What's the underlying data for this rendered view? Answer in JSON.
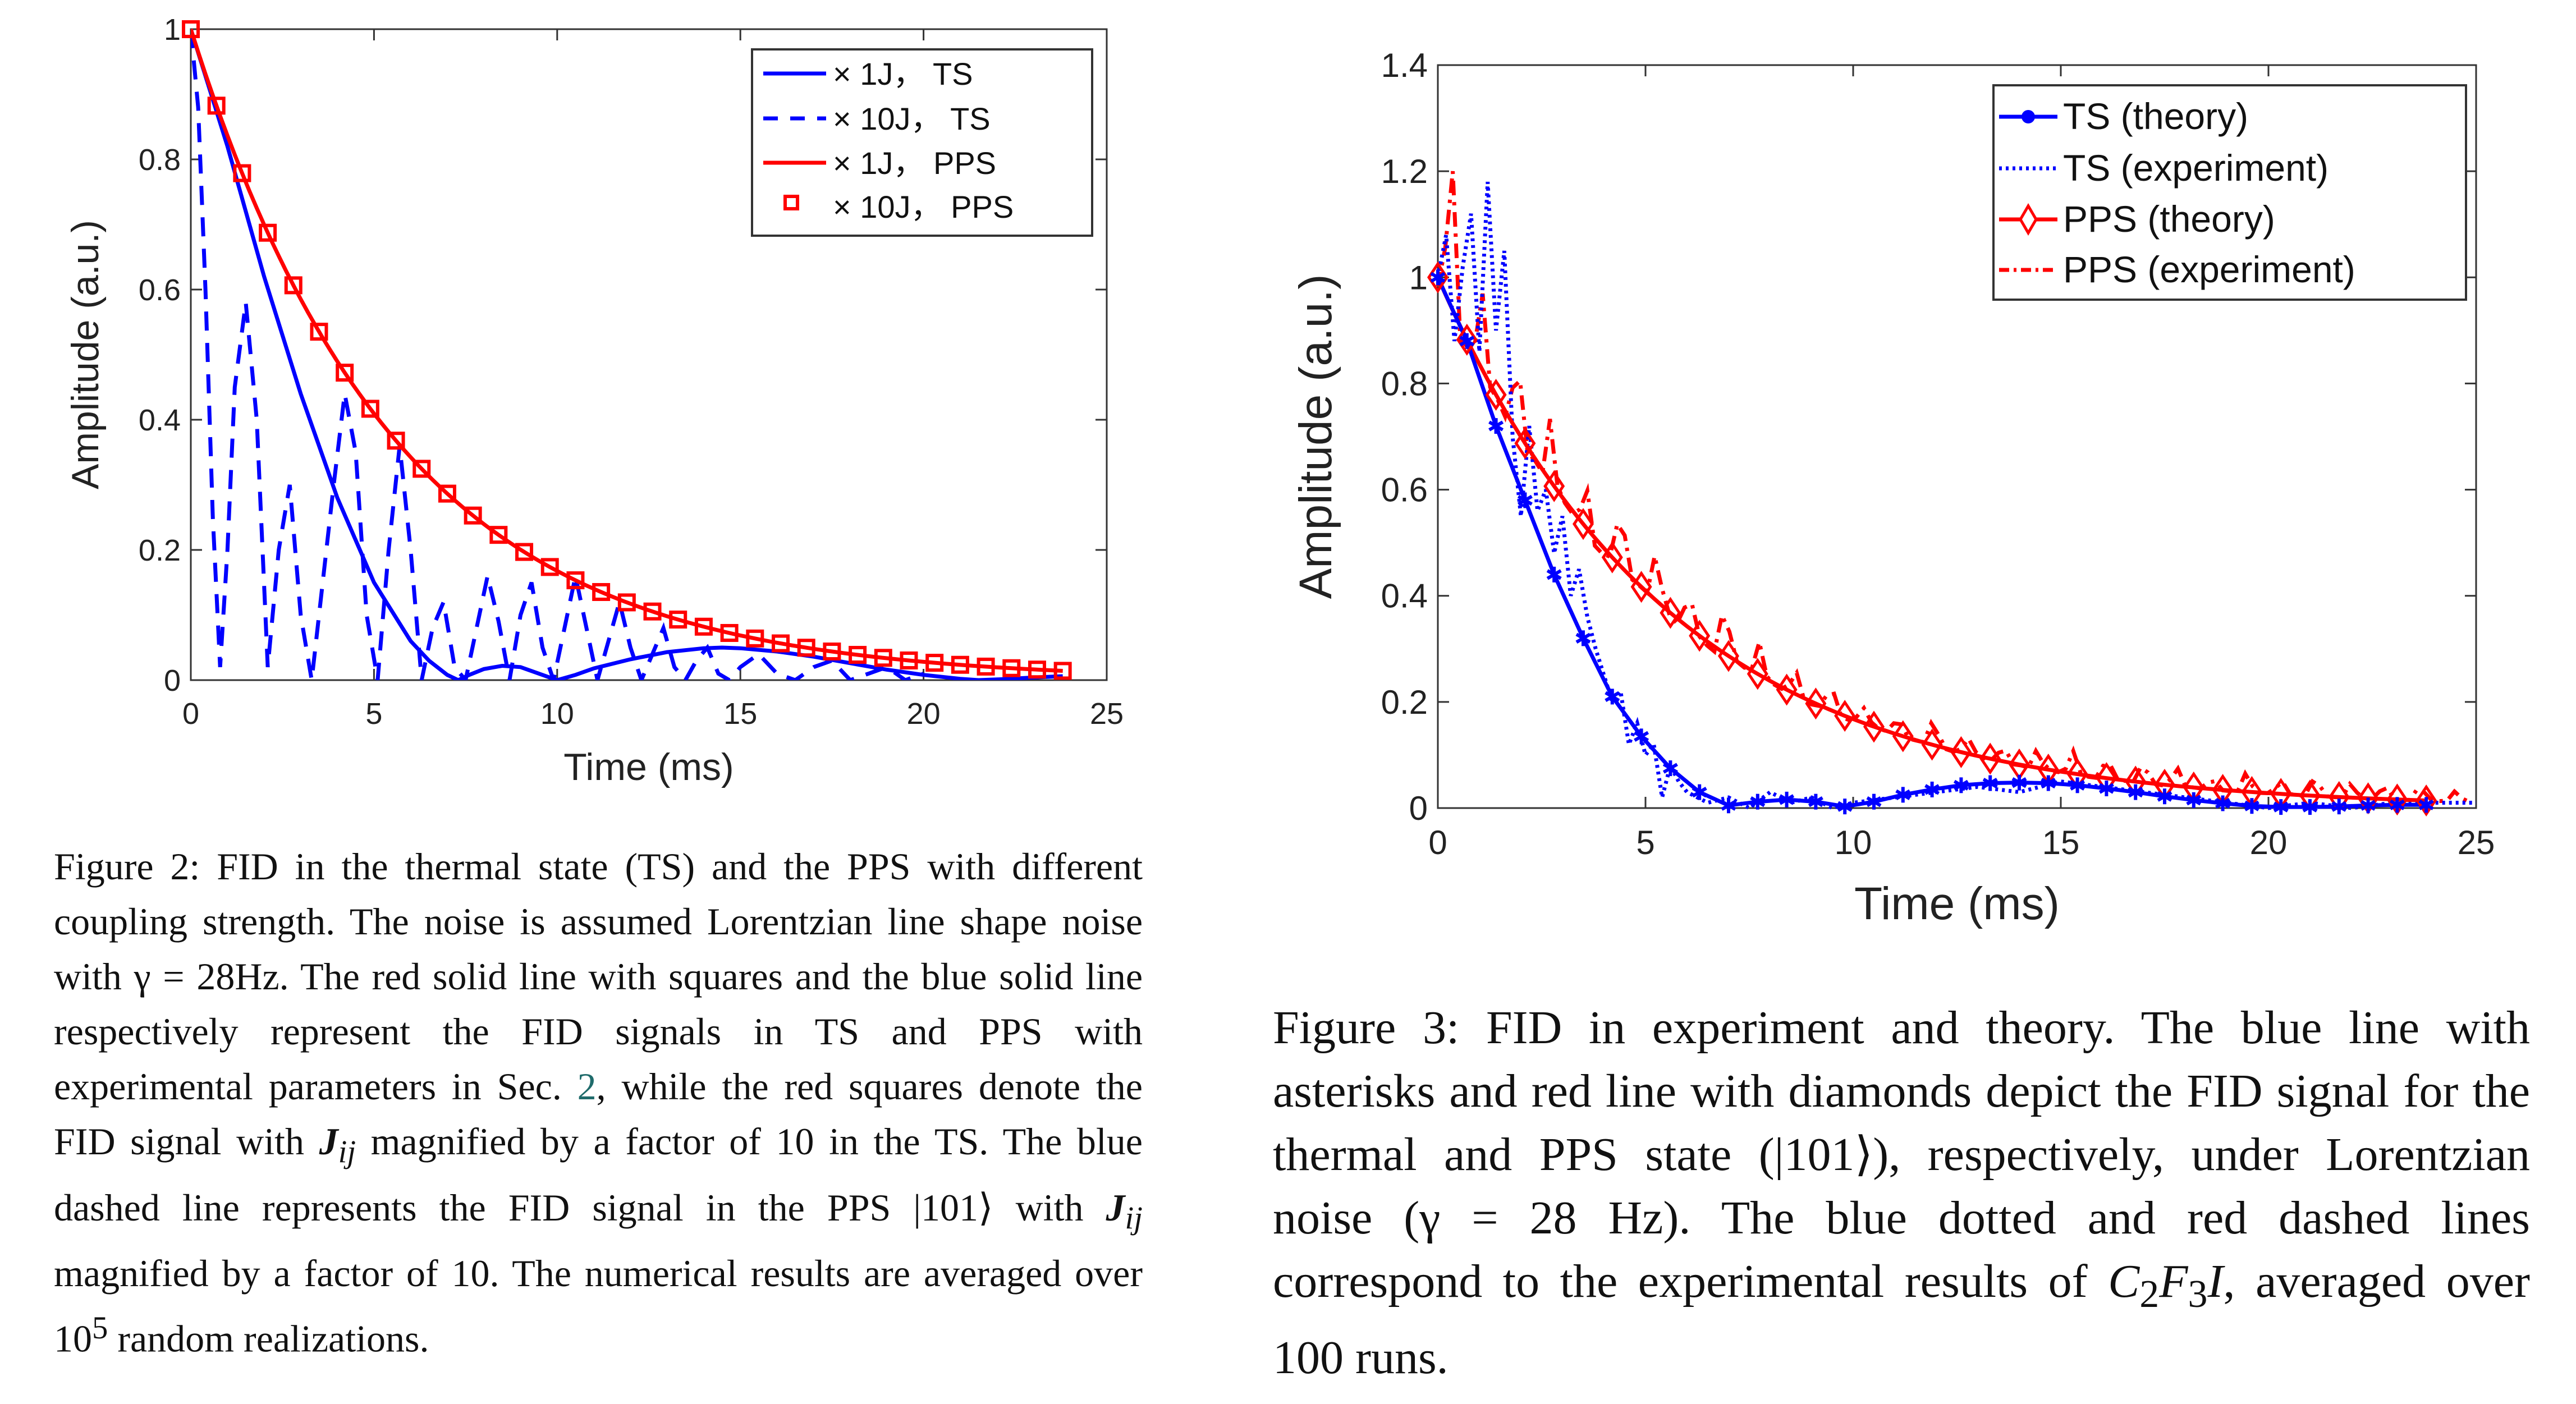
{
  "figure2": {
    "caption": {
      "label": "Figure 2:",
      "parts": [
        "FID in the thermal state (TS) and the PPS with different coupling strength. The noise is assumed Lorentzian line shape noise with γ = 28Hz. The red solid line with squares and the blue solid line respectively represent the FID signals in TS and PPS with experimental parameters in Sec. ",
        "2",
        ", while the red squares denote the FID signal with ",
        "J",
        "ij",
        " magnified by a factor of 10 in the TS. The blue dashed line represents the FID signal in the PPS |101⟩ with ",
        "J",
        "ij",
        " magnified by a factor of 10. The numerical results are averaged over 10",
        "5",
        " random realizations."
      ]
    }
  },
  "figure3": {
    "caption": {
      "label": "Figure 3:",
      "parts": [
        "FID in experiment and theory. The blue line with asterisks and red line with diamonds depict the FID signal for the thermal and PPS state (|101⟩), respectively, under Lorentzian noise (γ = 28 Hz). The blue dotted and red dashed lines correspond to the experimental results of ",
        "C",
        "2",
        "F",
        "3",
        "I",
        ", averaged over 100 runs."
      ]
    }
  },
  "chart_data": [
    {
      "id": "fig2-plot",
      "type": "line",
      "title": "",
      "xlabel": "Time (ms)",
      "ylabel": "Amplitude (a.u.)",
      "xlim": [
        0,
        25
      ],
      "ylim": [
        0,
        1
      ],
      "xticks": [
        "0",
        "5",
        "10",
        "15",
        "20",
        "25"
      ],
      "yticks": [
        "0",
        "0.2",
        "0.4",
        "0.6",
        "0.8",
        "1"
      ],
      "grid": false,
      "legend_position": "top-right",
      "series": [
        {
          "name": "× 1J， TS",
          "color": "#0000ff",
          "style": "solid",
          "marker": "none",
          "x": [
            0,
            1,
            2,
            3,
            4,
            5,
            6,
            6.5,
            7,
            7.3,
            7.6,
            8,
            8.5,
            9,
            9.5,
            10,
            10.5,
            11,
            12,
            13,
            14,
            14.5,
            15,
            16,
            17,
            18,
            19,
            20,
            21,
            21.5,
            22,
            23,
            23.8
          ],
          "y": [
            1,
            0.82,
            0.62,
            0.44,
            0.28,
            0.15,
            0.06,
            0.03,
            0.008,
            0.0,
            0.008,
            0.017,
            0.022,
            0.02,
            0.01,
            0.0,
            0.008,
            0.018,
            0.032,
            0.043,
            0.049,
            0.05,
            0.049,
            0.044,
            0.036,
            0.026,
            0.016,
            0.008,
            0.002,
            0.0,
            0.001,
            0.004,
            0.006
          ]
        },
        {
          "name": "× 10J，  TS",
          "color": "#0000ff",
          "style": "dashed",
          "marker": "none",
          "x": [
            0,
            0.2,
            0.4,
            0.6,
            0.8,
            1.0,
            1.2,
            1.5,
            1.8,
            2.1,
            2.4,
            2.7,
            3.0,
            3.3,
            3.6,
            3.9,
            4.2,
            4.5,
            4.8,
            5.1,
            5.4,
            5.7,
            6.0,
            6.3,
            6.6,
            6.9,
            7.2,
            7.5,
            7.8,
            8.1,
            8.4,
            8.7,
            9.0,
            9.3,
            9.6,
            9.9,
            10.2,
            10.5,
            10.8,
            11.1,
            11.4,
            11.7,
            12.0,
            12.3,
            12.6,
            12.9,
            13.2,
            13.5,
            13.8,
            14.1,
            14.4,
            14.7,
            15.0,
            15.5,
            16.0,
            16.5,
            17.0,
            17.5,
            18.0,
            18.5,
            19.0,
            19.5,
            20.0
          ],
          "y": [
            1,
            0.88,
            0.6,
            0.25,
            0.02,
            0.2,
            0.45,
            0.58,
            0.4,
            0.02,
            0.2,
            0.3,
            0.1,
            0.0,
            0.15,
            0.3,
            0.44,
            0.35,
            0.1,
            0.0,
            0.2,
            0.36,
            0.2,
            0.0,
            0.08,
            0.12,
            0.02,
            0.0,
            0.08,
            0.16,
            0.09,
            0.0,
            0.1,
            0.15,
            0.05,
            0.0,
            0.08,
            0.16,
            0.08,
            0.0,
            0.06,
            0.12,
            0.05,
            0.0,
            0.04,
            0.08,
            0.02,
            0.0,
            0.03,
            0.05,
            0.01,
            0.0,
            0.02,
            0.04,
            0.01,
            0.0,
            0.02,
            0.03,
            0.0,
            0.01,
            0.02,
            0.0,
            0.01
          ]
        },
        {
          "name": "× 1J，  PPS",
          "color": "#ff0000",
          "style": "solid",
          "marker": "none",
          "decay_model": "amplitude ≈ exp(-t/5.6)",
          "x_range": [
            0,
            23.8
          ],
          "y_at": {
            "0": 1,
            "2.1": 0.68,
            "5": 0.42,
            "10": 0.16,
            "15": 0.065,
            "20": 0.025,
            "23.8": 0.015
          }
        },
        {
          "name": "× 10J，  PPS",
          "color": "#ff0000",
          "style": "none",
          "marker": "square",
          "marker_spacing_ms": 0.7,
          "x_range": [
            0,
            23.8
          ],
          "follows": "× 1J，  PPS"
        }
      ]
    },
    {
      "id": "fig3-plot",
      "type": "line",
      "title": "",
      "xlabel": "Time (ms)",
      "ylabel": "Amplitude (a.u.)",
      "xlim": [
        0,
        25
      ],
      "ylim": [
        0,
        1.4
      ],
      "xticks": [
        "0",
        "5",
        "10",
        "15",
        "20",
        "25"
      ],
      "yticks": [
        "0",
        "0.2",
        "0.4",
        "0.6",
        "0.8",
        "1",
        "1.2",
        "1.4"
      ],
      "grid": false,
      "legend_position": "top-right",
      "series": [
        {
          "name": "TS (theory)",
          "color": "#0000ff",
          "style": "solid",
          "marker": "asterisk",
          "x": [
            0,
            0.7,
            1.4,
            2.1,
            2.8,
            3.5,
            4.2,
            4.9,
            5.6,
            6.3,
            7.0,
            7.7,
            8.4,
            9.1,
            9.8,
            10.5,
            11.2,
            11.9,
            12.6,
            13.3,
            14.0,
            14.7,
            15.4,
            16.1,
            16.8,
            17.5,
            18.2,
            18.9,
            19.6,
            20.3,
            21.0,
            21.7,
            22.4,
            23.1,
            23.8
          ],
          "y": [
            1,
            0.88,
            0.72,
            0.58,
            0.44,
            0.32,
            0.21,
            0.135,
            0.075,
            0.03,
            0.005,
            0.012,
            0.016,
            0.012,
            0.003,
            0.012,
            0.025,
            0.035,
            0.043,
            0.047,
            0.048,
            0.047,
            0.043,
            0.037,
            0.03,
            0.022,
            0.015,
            0.009,
            0.004,
            0.002,
            0.002,
            0.003,
            0.005,
            0.006,
            0.006
          ]
        },
        {
          "name": "TS (experiment)",
          "color": "#0000ff",
          "style": "dotted",
          "marker": "none",
          "x": [
            0,
            0.2,
            0.4,
            0.6,
            0.8,
            1.0,
            1.2,
            1.4,
            1.6,
            1.8,
            2.0,
            2.2,
            2.4,
            2.6,
            2.8,
            3.0,
            3.2,
            3.4,
            3.6,
            3.8,
            4.0,
            4.2,
            4.4,
            4.6,
            4.8,
            5.0,
            5.2,
            5.4,
            5.6,
            5.8,
            6.0,
            6.5,
            7.0,
            7.5,
            8.0,
            8.5,
            9.0,
            9.5,
            10,
            11,
            12,
            13,
            14,
            15,
            16,
            17,
            18,
            19,
            20,
            21,
            22,
            23,
            24,
            25
          ],
          "y": [
            1,
            1.08,
            0.88,
            1.02,
            1.12,
            0.86,
            1.18,
            0.9,
            1.05,
            0.7,
            0.55,
            0.72,
            0.56,
            0.6,
            0.48,
            0.55,
            0.4,
            0.45,
            0.36,
            0.3,
            0.25,
            0.2,
            0.22,
            0.12,
            0.16,
            0.1,
            0.12,
            0.02,
            0.08,
            0.05,
            0.03,
            0.01,
            0.02,
            0.0,
            0.03,
            0.01,
            0.02,
            0.0,
            0.01,
            0.02,
            0.03,
            0.04,
            0.03,
            0.05,
            0.04,
            0.03,
            0.02,
            0.01,
            0.0,
            0.01,
            0.0,
            0.01,
            0.01,
            0.01
          ]
        },
        {
          "name": "PPS (theory)",
          "color": "#ff0000",
          "style": "solid",
          "marker": "diamond",
          "marker_spacing_ms": 0.7,
          "decay_model": "amplitude ≈ exp(-t/5.6)",
          "x_range": [
            0,
            23.8
          ],
          "y_at": {
            "0": 1,
            "2.1": 0.69,
            "5": 0.41,
            "10": 0.17,
            "15": 0.07,
            "20": 0.025,
            "23.8": 0.015
          }
        },
        {
          "name": "PPS (experiment)",
          "color": "#ff0000",
          "style": "dashdot",
          "marker": "none",
          "x_range": [
            0,
            25
          ],
          "note": "fluctuates above PPS (theory), peaks up to 1.2 near t≈0.4 ms, ending ≈0.02 at 25 ms"
        }
      ]
    }
  ]
}
